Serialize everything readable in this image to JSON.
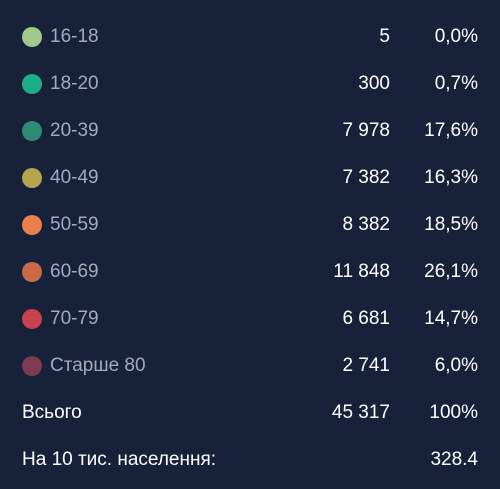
{
  "chart_data": {
    "type": "table",
    "columns": [
      "group",
      "count",
      "percent"
    ],
    "rows": [
      {
        "label": "16-18",
        "count": "5",
        "percent": "0,0%",
        "color": "#a3c98a"
      },
      {
        "label": "18-20",
        "count": "300",
        "percent": "0,7%",
        "color": "#1fae85"
      },
      {
        "label": "20-39",
        "count": "7 978",
        "percent": "17,6%",
        "color": "#2f8c72"
      },
      {
        "label": "40-49",
        "count": "7 382",
        "percent": "16,3%",
        "color": "#b4a54f"
      },
      {
        "label": "50-59",
        "count": "8 382",
        "percent": "18,5%",
        "color": "#e8804a"
      },
      {
        "label": "60-69",
        "count": "11 848",
        "percent": "26,1%",
        "color": "#c96a47"
      },
      {
        "label": "70-79",
        "count": "6 681",
        "percent": "14,7%",
        "color": "#c9414e"
      },
      {
        "label": "Старше 80",
        "count": "2 741",
        "percent": "6,0%",
        "color": "#7e3a4e"
      }
    ],
    "total": {
      "label": "Всього",
      "count": "45 317",
      "percent": "100%"
    },
    "per_capita": {
      "label": "На 10 тис. населення:",
      "value": "328.4"
    }
  }
}
